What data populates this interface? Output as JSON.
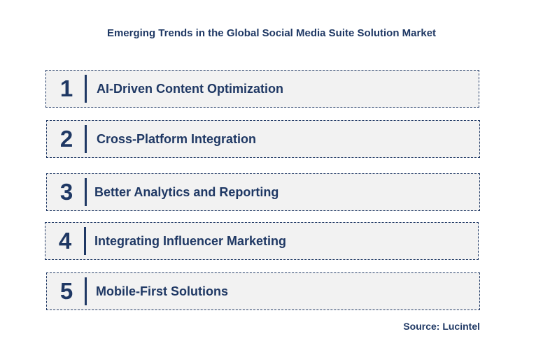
{
  "title": "Emerging Trends in the Global Social Media Suite Solution Market",
  "trends": [
    {
      "number": "1",
      "label": "AI-Driven Content Optimization"
    },
    {
      "number": "2",
      "label": "Cross-Platform Integration"
    },
    {
      "number": "3",
      "label": "Better Analytics and Reporting"
    },
    {
      "number": "4",
      "label": "Integrating Influencer Marketing"
    },
    {
      "number": "5",
      "label": "Mobile-First Solutions"
    }
  ],
  "source": "Source: Lucintel",
  "colors": {
    "text": "#1f3864",
    "box_bg": "#f2f2f2"
  }
}
